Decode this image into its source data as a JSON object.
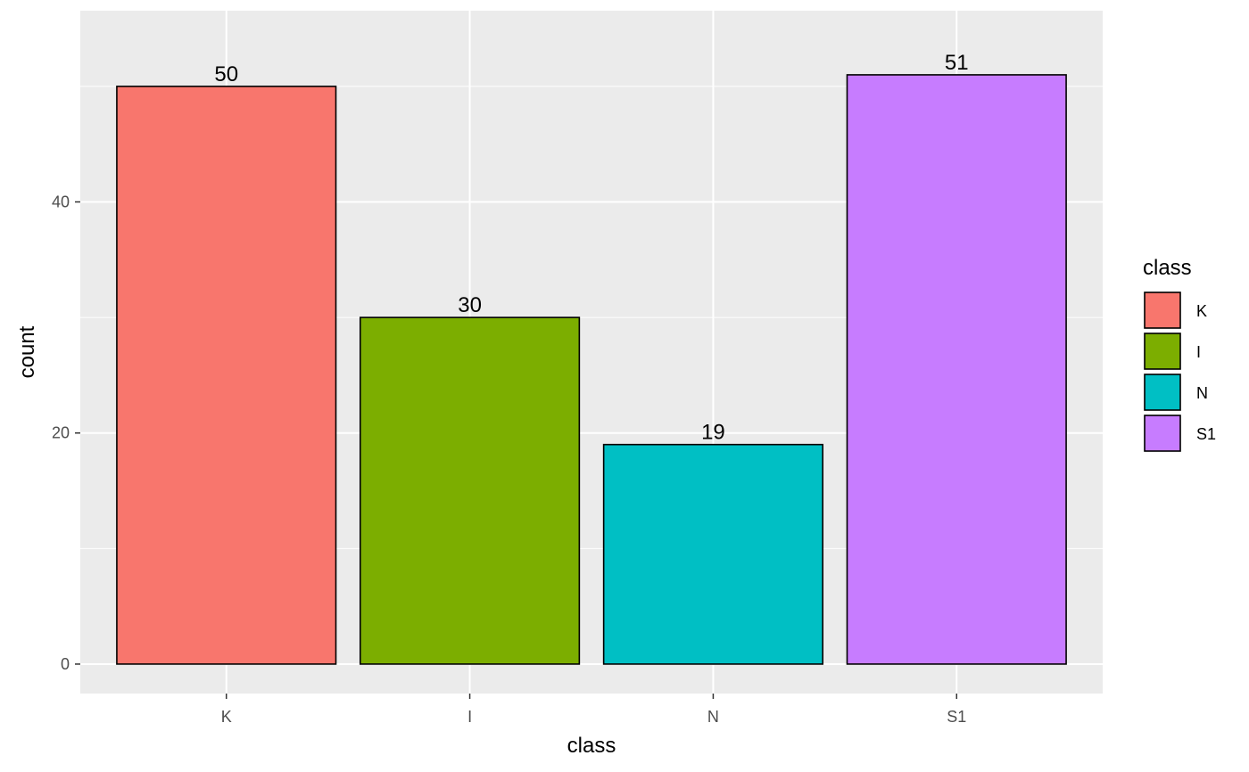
{
  "chart_data": {
    "type": "bar",
    "categories": [
      "K",
      "I",
      "N",
      "S1"
    ],
    "values": [
      50,
      30,
      19,
      51
    ],
    "data_labels": [
      "50",
      "30",
      "19",
      "51"
    ],
    "colors": [
      "#F8766D",
      "#7CAE00",
      "#00BFC4",
      "#C77CFF"
    ],
    "xlabel": "class",
    "ylabel": "count",
    "ylim": [
      -2.55,
      56.55
    ],
    "yticks": [
      0,
      20,
      40
    ],
    "ytick_labels": [
      "0",
      "20",
      "40"
    ],
    "grid": true,
    "panel_background": "#EBEBEB",
    "grid_color": "#FFFFFF",
    "bar_outline": "#000000",
    "legend": {
      "title": "class",
      "position": "right",
      "entries": [
        "K",
        "I",
        "N",
        "S1"
      ]
    }
  }
}
